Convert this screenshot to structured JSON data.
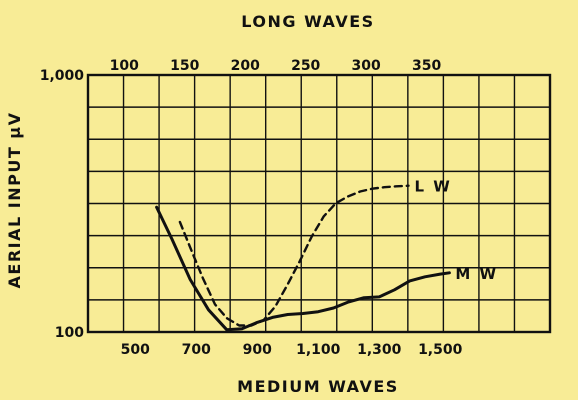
{
  "chart_data": {
    "type": "line",
    "top_axis": {
      "label": "LONG WAVES",
      "ticks": [
        {
          "value": 100,
          "label": "100"
        },
        {
          "value": 150,
          "label": "150"
        },
        {
          "value": 200,
          "label": "200"
        },
        {
          "value": 250,
          "label": "250"
        },
        {
          "value": 300,
          "label": "300"
        },
        {
          "value": 350,
          "label": "350"
        }
      ],
      "range": [
        70,
        452
      ]
    },
    "bottom_axis": {
      "label": "MEDIUM WAVES",
      "ticks": [
        {
          "value": 500,
          "label": "500"
        },
        {
          "value": 700,
          "label": "700"
        },
        {
          "value": 900,
          "label": "900"
        },
        {
          "value": 1100,
          "label": "1,100"
        },
        {
          "value": 1300,
          "label": "1,300"
        },
        {
          "value": 1500,
          "label": "1,500"
        }
      ],
      "range": [
        345,
        1860
      ]
    },
    "y_axis": {
      "label": "AERIAL INPUT μV",
      "scale": "log",
      "range": [
        100,
        1000
      ],
      "ticks": [
        {
          "value": 100,
          "label": "100"
        },
        {
          "value": 1000,
          "label": "1,000"
        }
      ]
    },
    "grid": true,
    "series": [
      {
        "name": "M W",
        "axis": "bottom",
        "dash": "solid",
        "color": "#111111",
        "points": [
          [
            570,
            306
          ],
          [
            620,
            230
          ],
          [
            680,
            160
          ],
          [
            740,
            122
          ],
          [
            800,
            102
          ],
          [
            850,
            103
          ],
          [
            900,
            109
          ],
          [
            950,
            114
          ],
          [
            1000,
            117
          ],
          [
            1050,
            118
          ],
          [
            1100,
            120
          ],
          [
            1150,
            124
          ],
          [
            1200,
            131
          ],
          [
            1250,
            136
          ],
          [
            1300,
            137
          ],
          [
            1350,
            146
          ],
          [
            1400,
            158
          ],
          [
            1450,
            164
          ],
          [
            1500,
            168
          ],
          [
            1530,
            170
          ]
        ]
      },
      {
        "name": "L W",
        "axis": "top",
        "dash": "dashed",
        "color": "#111111",
        "points": [
          [
            146,
            268
          ],
          [
            156,
            205
          ],
          [
            165,
            162
          ],
          [
            175,
            128
          ],
          [
            185,
            113
          ],
          [
            195,
            106
          ],
          [
            205,
            106
          ],
          [
            215,
            111
          ],
          [
            225,
            126
          ],
          [
            235,
            153
          ],
          [
            245,
            188
          ],
          [
            255,
            235
          ],
          [
            265,
            282
          ],
          [
            275,
            317
          ],
          [
            285,
            337
          ],
          [
            295,
            352
          ],
          [
            305,
            361
          ],
          [
            315,
            366
          ],
          [
            325,
            369
          ],
          [
            335,
            371
          ]
        ]
      }
    ]
  }
}
